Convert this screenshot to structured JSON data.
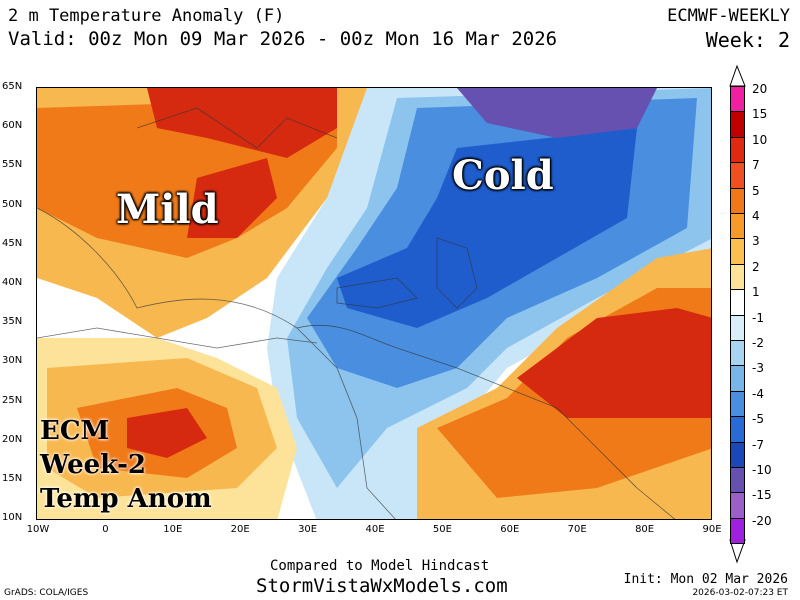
{
  "header": {
    "title": "2 m Temperature Anomaly (F)",
    "valid": "Valid: 00z Mon 09 Mar 2026 - 00z Mon 16 Mar 2026",
    "model": "ECMWF-WEEKLY",
    "week": "Week: 2"
  },
  "map": {
    "lat_labels": [
      "65N",
      "60N",
      "55N",
      "50N",
      "45N",
      "40N",
      "35N",
      "30N",
      "25N",
      "20N",
      "15N",
      "10N"
    ],
    "lon_labels": [
      "10W",
      "0",
      "10E",
      "20E",
      "30E",
      "40E",
      "50E",
      "60E",
      "70E",
      "80E",
      "90E"
    ],
    "overlay_labels": {
      "mild": "Mild",
      "cold": "Cold",
      "ecm_line1": "ECM",
      "ecm_line2": "Week-2",
      "ecm_line3": "Temp Anom"
    },
    "colors": {
      "warm_strong": "#d62a10",
      "warm": "#f07a18",
      "warm_light": "#f8b850",
      "warm_faint": "#fde39a",
      "cold_faint": "#c9e6f8",
      "cold_light": "#8cc4ee",
      "cold": "#4a8ee0",
      "cold_strong": "#1f5dcc",
      "cold_extreme": "#6650b0"
    }
  },
  "colorbar": {
    "labels": [
      "20",
      "15",
      "10",
      "7",
      "5",
      "4",
      "3",
      "2",
      "1",
      "-1",
      "-2",
      "-3",
      "-4",
      "-5",
      "-7",
      "-10",
      "-15",
      "-20"
    ],
    "colors": [
      "#f020a0",
      "#c00000",
      "#e02a10",
      "#f05020",
      "#f07818",
      "#f89a28",
      "#fcc050",
      "#fde39a",
      "#ffffff",
      "#d8eef9",
      "#a8d4f2",
      "#78b6ea",
      "#4a8ee0",
      "#2a6ad6",
      "#1a48b8",
      "#6650b0",
      "#9a60c8",
      "#a020e0"
    ]
  },
  "footer": {
    "compared": "Compared to Model Hindcast",
    "site": "StormVistaWxModels.com",
    "grads": "GrADS: COLA/IGES",
    "init": "Init: Mon 02 Mar 2026",
    "timestamp": "2026-03-02-07:23 ET"
  }
}
